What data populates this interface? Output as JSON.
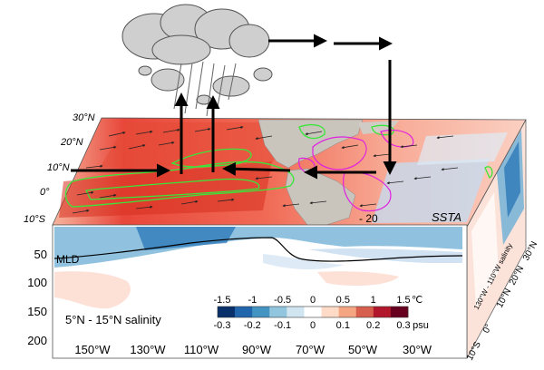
{
  "lat_labels_top": [
    "30°N",
    "20°N",
    "10°N",
    "0°",
    "10°S"
  ],
  "lat_labels_side": [
    "10°S",
    "0°",
    "10°N",
    "20°N",
    "30°N"
  ],
  "depth_ticks": [
    "50",
    "100",
    "150",
    "200"
  ],
  "lon_ticks": [
    "150°W",
    "130°W",
    "110°W",
    "90°W",
    "70°W",
    "50°W",
    "30°W"
  ],
  "labels": {
    "mld": "MLD",
    "ssta": "SSTA",
    "contour_value": "- 20",
    "salinity_section": "5°N - 15°N salinity",
    "side_section": "130°W - 110°W salinity"
  },
  "colorbar": {
    "temp_ticks": [
      "-1.5",
      "-1",
      "-0.5",
      "0",
      "0.5",
      "1",
      "1.5"
    ],
    "temp_unit": "℃",
    "sal_ticks": [
      "-0.3",
      "-0.2",
      "-0.1",
      "0",
      "0.1",
      "0.2",
      "0.3"
    ],
    "sal_unit": "psu",
    "colors": [
      "#08306b",
      "#2166ac",
      "#4393c3",
      "#92c5de",
      "#d1e5f0",
      "#ffffff",
      "#fddbc7",
      "#f4a582",
      "#d6604d",
      "#b2182b",
      "#67001f"
    ]
  },
  "colors": {
    "warm_anomaly": "#e8473a",
    "cool_anomaly": "#9ecae1",
    "land": "#c9c4bc",
    "precip_contour": "#39e639",
    "secondary_contour": "#e020e0"
  }
}
